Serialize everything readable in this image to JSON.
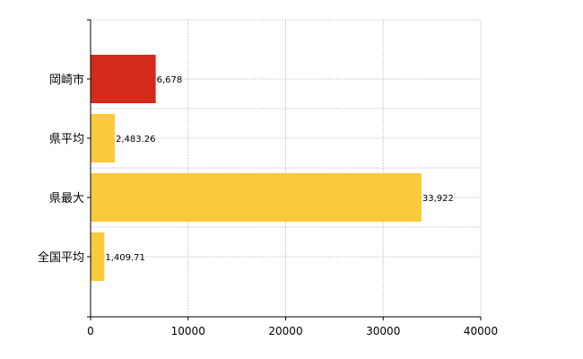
{
  "chart_data": {
    "type": "bar",
    "orientation": "horizontal",
    "categories": [
      "岡崎市",
      "県平均",
      "県最大",
      "全国平均"
    ],
    "values": [
      6678,
      2483.26,
      33922,
      1409.71
    ],
    "value_labels": [
      "6,678",
      "2,483.26",
      "33,922",
      "1,409.71"
    ],
    "bar_colors": [
      "#d42a1a",
      "#fcc83c",
      "#fcc83c",
      "#fcc83c"
    ],
    "xlim": [
      0,
      40000
    ],
    "x_ticks": [
      0,
      10000,
      20000,
      30000,
      40000
    ],
    "x_tick_labels": [
      "0",
      "10000",
      "20000",
      "30000",
      "40000"
    ],
    "title": "",
    "xlabel": "",
    "ylabel": "",
    "grid": true,
    "legend": "none"
  }
}
